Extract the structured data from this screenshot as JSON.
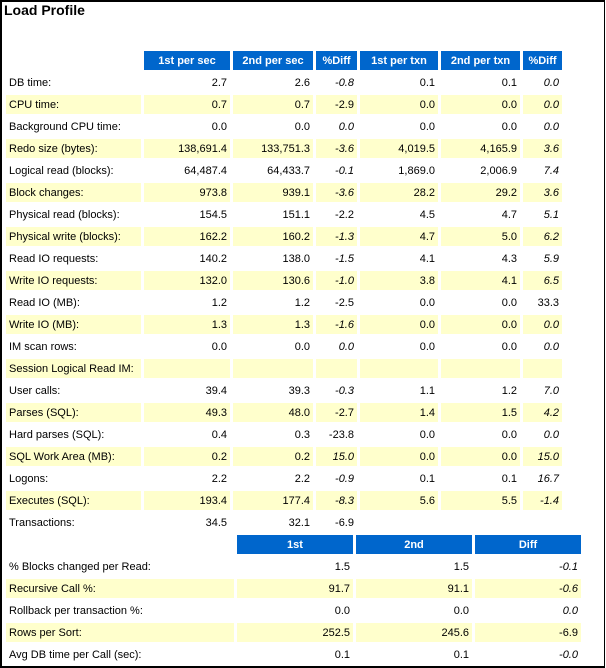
{
  "title": "Load Profile",
  "profile": {
    "headers": [
      "1st per sec",
      "2nd per sec",
      "%Diff",
      "1st per txn",
      "2nd per txn",
      "%Diff"
    ],
    "rows": [
      {
        "label": "DB time:",
        "values": [
          "2.7",
          "2.6",
          "-0.8",
          "0.1",
          "0.1",
          "0.0"
        ]
      },
      {
        "label": "CPU time:",
        "values": [
          "0.7",
          "0.7",
          "-2.9",
          "0.0",
          "0.0",
          "0.0"
        ]
      },
      {
        "label": "Background CPU time:",
        "values": [
          "0.0",
          "0.0",
          "0.0",
          "0.0",
          "0.0",
          "0.0"
        ]
      },
      {
        "label": "Redo size (bytes):",
        "values": [
          "138,691.4",
          "133,751.3",
          "-3.6",
          "4,019.5",
          "4,165.9",
          "3.6"
        ]
      },
      {
        "label": "Logical read (blocks):",
        "values": [
          "64,487.4",
          "64,433.7",
          "-0.1",
          "1,869.0",
          "2,006.9",
          "7.4"
        ]
      },
      {
        "label": "Block changes:",
        "values": [
          "973.8",
          "939.1",
          "-3.6",
          "28.2",
          "29.2",
          "3.6"
        ]
      },
      {
        "label": "Physical read (blocks):",
        "values": [
          "154.5",
          "151.1",
          "-2.2",
          "4.5",
          "4.7",
          "5.1"
        ]
      },
      {
        "label": "Physical write (blocks):",
        "values": [
          "162.2",
          "160.2",
          "-1.3",
          "4.7",
          "5.0",
          "6.2"
        ]
      },
      {
        "label": "Read IO requests:",
        "values": [
          "140.2",
          "138.0",
          "-1.5",
          "4.1",
          "4.3",
          "5.9"
        ]
      },
      {
        "label": "Write IO requests:",
        "values": [
          "132.0",
          "130.6",
          "-1.0",
          "3.8",
          "4.1",
          "6.5"
        ]
      },
      {
        "label": "Read IO (MB):",
        "values": [
          "1.2",
          "1.2",
          "-2.5",
          "0.0",
          "0.0",
          "33.3"
        ]
      },
      {
        "label": "Write IO (MB):",
        "values": [
          "1.3",
          "1.3",
          "-1.6",
          "0.0",
          "0.0",
          "0.0"
        ]
      },
      {
        "label": "IM scan rows:",
        "values": [
          "0.0",
          "0.0",
          "0.0",
          "0.0",
          "0.0",
          "0.0"
        ]
      },
      {
        "label": "Session Logical Read IM:",
        "values": [
          "",
          "",
          "",
          "",
          "",
          ""
        ]
      },
      {
        "label": "User calls:",
        "values": [
          "39.4",
          "39.3",
          "-0.3",
          "1.1",
          "1.2",
          "7.0"
        ]
      },
      {
        "label": "Parses (SQL):",
        "values": [
          "49.3",
          "48.0",
          "-2.7",
          "1.4",
          "1.5",
          "4.2"
        ]
      },
      {
        "label": "Hard parses (SQL):",
        "values": [
          "0.4",
          "0.3",
          "-23.8",
          "0.0",
          "0.0",
          "0.0"
        ]
      },
      {
        "label": "SQL Work Area (MB):",
        "values": [
          "0.2",
          "0.2",
          "15.0",
          "0.0",
          "0.0",
          "15.0"
        ]
      },
      {
        "label": "Logons:",
        "values": [
          "2.2",
          "2.2",
          "-0.9",
          "0.1",
          "0.1",
          "16.7"
        ]
      },
      {
        "label": "Executes (SQL):",
        "values": [
          "193.4",
          "177.4",
          "-8.3",
          "5.6",
          "5.5",
          "-1.4"
        ]
      },
      {
        "label": "Transactions:",
        "values": [
          "34.5",
          "32.1",
          "-6.9",
          "",
          "",
          ""
        ]
      }
    ]
  },
  "ratios": {
    "headers": [
      "1st",
      "2nd",
      "Diff"
    ],
    "rows": [
      {
        "label": "% Blocks changed per Read:",
        "values": [
          "1.5",
          "1.5",
          "-0.1"
        ]
      },
      {
        "label": "Recursive Call %:",
        "values": [
          "91.7",
          "91.1",
          "-0.6"
        ]
      },
      {
        "label": "Rollback per transaction %:",
        "values": [
          "0.0",
          "0.0",
          "0.0"
        ]
      },
      {
        "label": "Rows per Sort:",
        "values": [
          "252.5",
          "245.6",
          "-6.9"
        ]
      },
      {
        "label": "Avg DB time per Call (sec):",
        "values": [
          "0.1",
          "0.1",
          "-0.0"
        ]
      }
    ]
  },
  "colors": {
    "header_bg": "#0066cc",
    "alt_row_bg": "#ffffcc"
  }
}
